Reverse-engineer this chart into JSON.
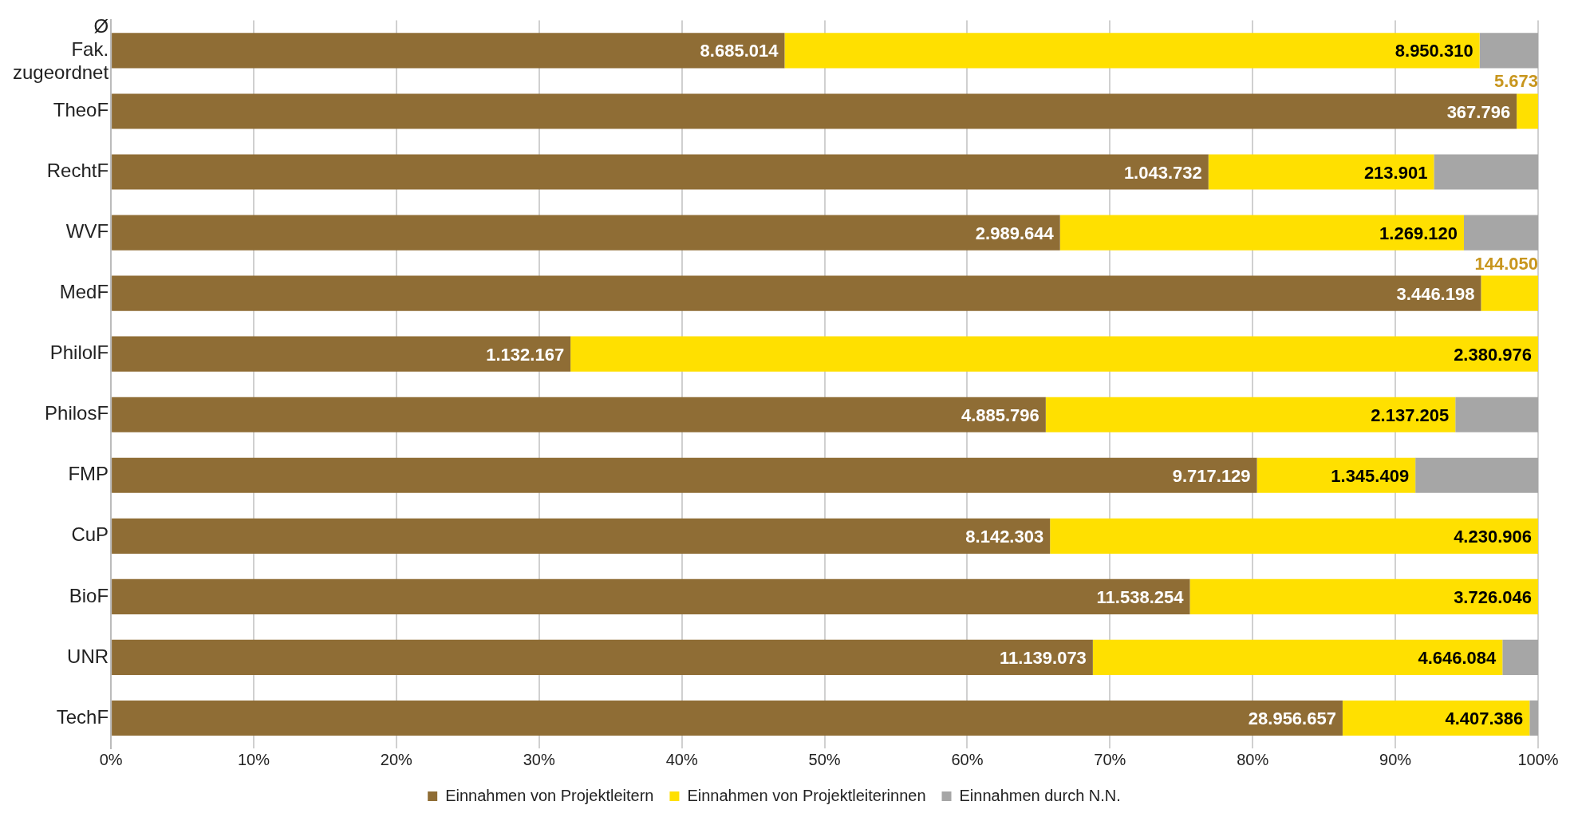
{
  "chart_data": {
    "type": "bar",
    "orientation": "horizontal",
    "stacked": true,
    "categories": [
      "Ø Fak. zugeordnet",
      "TheoF",
      "RechtF",
      "WVF",
      "MedF",
      "PhilolF",
      "PhilosF",
      "FMP",
      "CuP",
      "BioF",
      "UNR",
      "TechF"
    ],
    "series": [
      {
        "name": "Einnahmen von Projektleitern",
        "color": "#8f6d35",
        "values": [
          47.2,
          98.5,
          76.9,
          66.5,
          96.0,
          32.2,
          65.5,
          80.3,
          65.8,
          75.6,
          68.8,
          86.3
        ]
      },
      {
        "name": "Einnahmen von Projektleiterinnen",
        "color": "#ffe000",
        "values": [
          48.7,
          1.5,
          15.8,
          28.3,
          4.0,
          67.8,
          28.7,
          11.1,
          34.2,
          24.4,
          28.7,
          13.1
        ]
      },
      {
        "name": "Einnahmen durch N.N.",
        "color": "#a6a6a6",
        "values": [
          4.1,
          0,
          7.3,
          5.2,
          0,
          0,
          5.8,
          8.6,
          0,
          0,
          2.5,
          0.6
        ]
      }
    ],
    "annotations": [
      {
        "text": "8.685.014",
        "x": 47.2,
        "y": "Ø Fak. zugeordnet"
      },
      {
        "text": "8.950.310",
        "x": 95.9,
        "y": "Ø Fak. zugeordnet"
      },
      {
        "text": "367.796",
        "x": 98.5,
        "y": "TheoF"
      },
      {
        "text": "5.673",
        "x": 100,
        "y": "TheoF"
      },
      {
        "text": "1.043.732",
        "x": 76.9,
        "y": "RechtF"
      },
      {
        "text": "213.901",
        "x": 92.7,
        "y": "RechtF"
      },
      {
        "text": "2.989.644",
        "x": 66.5,
        "y": "WVF"
      },
      {
        "text": "1.269.120",
        "x": 94.8,
        "y": "WVF"
      },
      {
        "text": "3.446.198",
        "x": 96.0,
        "y": "MedF"
      },
      {
        "text": "144.050",
        "x": 100,
        "y": "MedF"
      },
      {
        "text": "1.132.167",
        "x": 32.2,
        "y": "PhilolF"
      },
      {
        "text": "2.380.976",
        "x": 100,
        "y": "PhilolF"
      },
      {
        "text": "4.885.796",
        "x": 65.5,
        "y": "PhilosF"
      },
      {
        "text": "2.137.205",
        "x": 94.2,
        "y": "PhilosF"
      },
      {
        "text": "9.717.129",
        "x": 80.3,
        "y": "FMP"
      },
      {
        "text": "1.345.409",
        "x": 91.4,
        "y": "FMP"
      },
      {
        "text": "8.142.303",
        "x": 65.8,
        "y": "CuP"
      },
      {
        "text": "4.230.906",
        "x": 100,
        "y": "CuP"
      },
      {
        "text": "11.538.254",
        "x": 75.6,
        "y": "BioF"
      },
      {
        "text": "3.726.046",
        "x": 100,
        "y": "BioF"
      },
      {
        "text": "11.139.073",
        "x": 68.8,
        "y": "UNR"
      },
      {
        "text": "4.646.084",
        "x": 97.5,
        "y": "UNR"
      },
      {
        "text": "28.956.657",
        "x": 86.3,
        "y": "TechF"
      },
      {
        "text": "4.407.386",
        "x": 99.4,
        "y": "TechF"
      }
    ],
    "xlim": [
      0,
      100
    ],
    "xticks": [
      {
        "value": 0,
        "label": "0%"
      },
      {
        "value": 10,
        "label": "10%"
      },
      {
        "value": 20,
        "label": "20%"
      },
      {
        "value": 30,
        "label": "30%"
      },
      {
        "value": 40,
        "label": "40%"
      },
      {
        "value": 50,
        "label": "50%"
      },
      {
        "value": 60,
        "label": "60%"
      },
      {
        "value": 70,
        "label": "70%"
      },
      {
        "value": 80,
        "label": "80%"
      },
      {
        "value": 90,
        "label": "90%"
      },
      {
        "value": 100,
        "label": "100%"
      }
    ],
    "grid": "x",
    "legend": "bottom"
  }
}
